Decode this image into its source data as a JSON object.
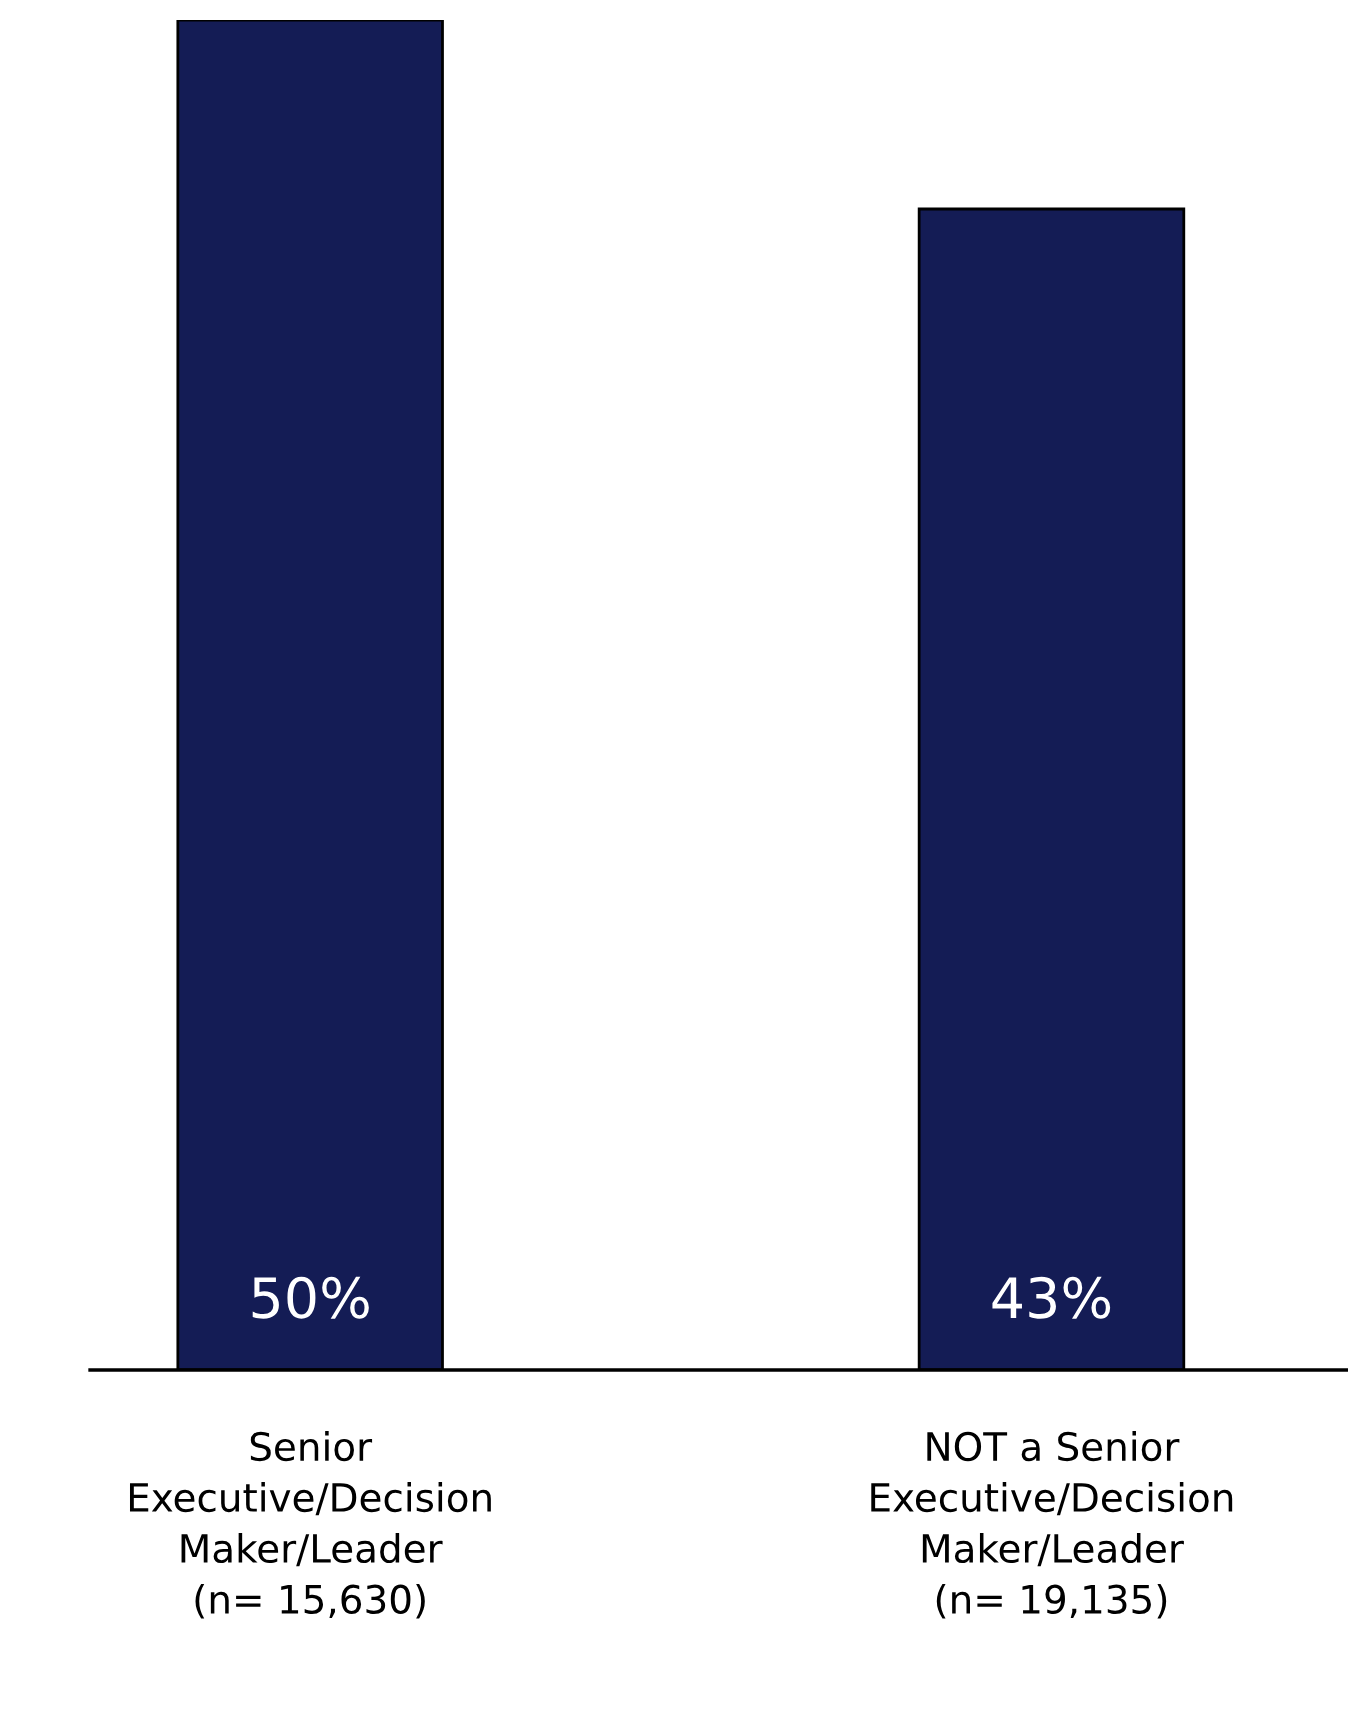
{
  "chart_data": {
    "type": "bar",
    "categories": [
      "Senior\nExecutive/Decision\nMaker/Leader\n(n= 15,630)",
      "NOT a Senior\nExecutive/Decision\nMaker/Leader\n(n= 19,135)"
    ],
    "values": [
      50,
      43
    ],
    "color": "#141c55",
    "value_labels": [
      "50%",
      "43%"
    ],
    "ylim": [
      0,
      50
    ],
    "tick_labels": "x",
    "grid": false,
    "legend": false
  }
}
